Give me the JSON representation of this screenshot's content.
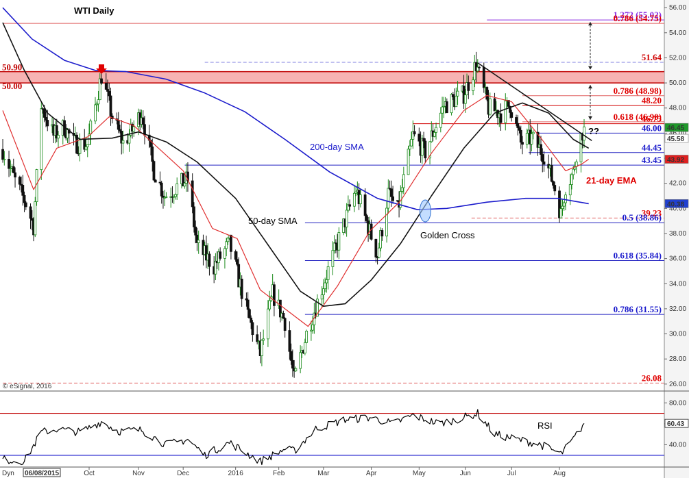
{
  "chart_data": {
    "type": "candlestick",
    "title": "WTI Daily",
    "source": "© eSignal, 2016",
    "start_date_label": "06/08/2015",
    "corner_label": "Dyn",
    "ylim": [
      25.5,
      56.5
    ],
    "y_ticks": [
      26.0,
      28.0,
      30.0,
      32.0,
      34.0,
      36.0,
      38.0,
      40.0,
      42.0,
      44.0,
      46.0,
      48.0,
      50.0,
      52.0,
      54.0,
      56.0
    ],
    "x_labels": [
      {
        "label": "Oct",
        "date": "2015-10-01"
      },
      {
        "label": "Nov",
        "date": "2015-11-02"
      },
      {
        "label": "Dec",
        "date": "2015-12-01"
      },
      {
        "label": "2016",
        "date": "2016-01-04"
      },
      {
        "label": "Feb",
        "date": "2016-02-01"
      },
      {
        "label": "Mar",
        "date": "2016-03-01"
      },
      {
        "label": "Apr",
        "date": "2016-04-01"
      },
      {
        "label": "May",
        "date": "2016-05-02"
      },
      {
        "label": "Jun",
        "date": "2016-06-01"
      },
      {
        "label": "Jul",
        "date": "2016-07-01"
      },
      {
        "label": "Aug",
        "date": "2016-08-01"
      }
    ],
    "price_key_dates": [
      {
        "date": "2015-08-06",
        "close": 44.7
      },
      {
        "date": "2015-08-14",
        "close": 42.2
      },
      {
        "date": "2015-08-21",
        "close": 40.4
      },
      {
        "date": "2015-08-26",
        "close": 38.6
      },
      {
        "date": "2015-08-31",
        "close": 48.2
      },
      {
        "date": "2015-09-08",
        "close": 45.8
      },
      {
        "date": "2015-09-15",
        "close": 46.5
      },
      {
        "date": "2015-09-21",
        "close": 45.2
      },
      {
        "date": "2015-09-30",
        "close": 45.1
      },
      {
        "date": "2015-10-09",
        "close": 50.6
      },
      {
        "date": "2015-10-16",
        "close": 47.3
      },
      {
        "date": "2015-10-23",
        "close": 45.2
      },
      {
        "date": "2015-10-28",
        "close": 46.0
      },
      {
        "date": "2015-11-04",
        "close": 47.7
      },
      {
        "date": "2015-11-12",
        "close": 43.0
      },
      {
        "date": "2015-11-19",
        "close": 41.0
      },
      {
        "date": "2015-11-30",
        "close": 42.0
      },
      {
        "date": "2015-12-04",
        "close": 42.3
      },
      {
        "date": "2015-12-10",
        "close": 37.0
      },
      {
        "date": "2015-12-21",
        "close": 35.4
      },
      {
        "date": "2015-12-31",
        "close": 37.2
      },
      {
        "date": "2016-01-12",
        "close": 31.5
      },
      {
        "date": "2016-01-20",
        "close": 28.4
      },
      {
        "date": "2016-01-28",
        "close": 33.2
      },
      {
        "date": "2016-02-05",
        "close": 31.0
      },
      {
        "date": "2016-02-11",
        "close": 26.3
      },
      {
        "date": "2016-02-19",
        "close": 30.0
      },
      {
        "date": "2016-03-01",
        "close": 34.0
      },
      {
        "date": "2016-03-08",
        "close": 36.5
      },
      {
        "date": "2016-03-22",
        "close": 41.5
      },
      {
        "date": "2016-04-05",
        "close": 36.3
      },
      {
        "date": "2016-04-12",
        "close": 41.2
      },
      {
        "date": "2016-04-18",
        "close": 39.8
      },
      {
        "date": "2016-04-28",
        "close": 45.8
      },
      {
        "date": "2016-05-06",
        "close": 44.5
      },
      {
        "date": "2016-05-18",
        "close": 48.2
      },
      {
        "date": "2016-05-31",
        "close": 49.1
      },
      {
        "date": "2016-06-08",
        "close": 51.5
      },
      {
        "date": "2016-06-16",
        "close": 48.0
      },
      {
        "date": "2016-06-24",
        "close": 47.6
      },
      {
        "date": "2016-06-30",
        "close": 48.3
      },
      {
        "date": "2016-07-07",
        "close": 45.2
      },
      {
        "date": "2016-07-14",
        "close": 45.6
      },
      {
        "date": "2016-07-22",
        "close": 44.3
      },
      {
        "date": "2016-07-29",
        "close": 41.6
      },
      {
        "date": "2016-08-02",
        "close": 39.5
      },
      {
        "date": "2016-08-05",
        "close": 41.8
      },
      {
        "date": "2016-08-10",
        "close": 42.8
      },
      {
        "date": "2016-08-12",
        "close": 44.5
      },
      {
        "date": "2016-08-15",
        "close": 45.7
      },
      {
        "date": "2016-08-17",
        "close": 46.5
      }
    ],
    "sma50": [
      {
        "date": "2015-08-06",
        "value": 54.8
      },
      {
        "date": "2015-08-20",
        "value": 51.0
      },
      {
        "date": "2015-09-04",
        "value": 47.6
      },
      {
        "date": "2015-09-25",
        "value": 45.5
      },
      {
        "date": "2015-10-16",
        "value": 45.6
      },
      {
        "date": "2015-11-02",
        "value": 46.1
      },
      {
        "date": "2015-11-20",
        "value": 45.3
      },
      {
        "date": "2015-12-10",
        "value": 43.7
      },
      {
        "date": "2016-01-04",
        "value": 40.8
      },
      {
        "date": "2016-01-25",
        "value": 37.1
      },
      {
        "date": "2016-02-15",
        "value": 33.4
      },
      {
        "date": "2016-03-01",
        "value": 32.2
      },
      {
        "date": "2016-03-15",
        "value": 32.4
      },
      {
        "date": "2016-04-01",
        "value": 34.3
      },
      {
        "date": "2016-04-20",
        "value": 37.2
      },
      {
        "date": "2016-05-10",
        "value": 41.0
      },
      {
        "date": "2016-05-31",
        "value": 44.8
      },
      {
        "date": "2016-06-20",
        "value": 47.6
      },
      {
        "date": "2016-07-08",
        "value": 48.4
      },
      {
        "date": "2016-07-25",
        "value": 47.6
      },
      {
        "date": "2016-08-10",
        "value": 45.5
      },
      {
        "date": "2016-08-20",
        "value": 44.8
      }
    ],
    "sma200": [
      {
        "date": "2015-08-06",
        "value": 56.0
      },
      {
        "date": "2015-08-25",
        "value": 53.5
      },
      {
        "date": "2015-09-15",
        "value": 51.8
      },
      {
        "date": "2015-10-05",
        "value": 51.0
      },
      {
        "date": "2015-10-25",
        "value": 50.9
      },
      {
        "date": "2015-11-20",
        "value": 50.3
      },
      {
        "date": "2015-12-15",
        "value": 49.2
      },
      {
        "date": "2016-01-10",
        "value": 47.7
      },
      {
        "date": "2016-02-05",
        "value": 45.5
      },
      {
        "date": "2016-03-05",
        "value": 42.9
      },
      {
        "date": "2016-04-05",
        "value": 40.8
      },
      {
        "date": "2016-05-01",
        "value": 39.9
      },
      {
        "date": "2016-05-20",
        "value": 40.0
      },
      {
        "date": "2016-06-15",
        "value": 40.5
      },
      {
        "date": "2016-07-10",
        "value": 40.8
      },
      {
        "date": "2016-07-31",
        "value": 40.8
      },
      {
        "date": "2016-08-20",
        "value": 40.38
      }
    ],
    "ema21": [
      {
        "date": "2015-08-06",
        "value": 47.8
      },
      {
        "date": "2015-08-26",
        "value": 41.5
      },
      {
        "date": "2015-09-10",
        "value": 44.8
      },
      {
        "date": "2015-09-30",
        "value": 45.7
      },
      {
        "date": "2015-10-14",
        "value": 47.3
      },
      {
        "date": "2015-10-30",
        "value": 46.6
      },
      {
        "date": "2015-11-15",
        "value": 44.8
      },
      {
        "date": "2015-12-01",
        "value": 43.0
      },
      {
        "date": "2015-12-20",
        "value": 38.4
      },
      {
        "date": "2016-01-05",
        "value": 37.6
      },
      {
        "date": "2016-01-20",
        "value": 33.5
      },
      {
        "date": "2016-02-05",
        "value": 32.0
      },
      {
        "date": "2016-02-20",
        "value": 30.6
      },
      {
        "date": "2016-03-10",
        "value": 33.8
      },
      {
        "date": "2016-03-31",
        "value": 38.2
      },
      {
        "date": "2016-04-20",
        "value": 40.6
      },
      {
        "date": "2016-05-10",
        "value": 44.4
      },
      {
        "date": "2016-05-31",
        "value": 47.8
      },
      {
        "date": "2016-06-15",
        "value": 49.0
      },
      {
        "date": "2016-07-01",
        "value": 48.5
      },
      {
        "date": "2016-07-20",
        "value": 45.6
      },
      {
        "date": "2016-08-05",
        "value": 43.0
      },
      {
        "date": "2016-08-15",
        "value": 43.5
      },
      {
        "date": "2016-08-20",
        "value": 43.92
      }
    ],
    "resistance_zone": {
      "from": 50.0,
      "to": 50.9,
      "labels": [
        "50.90",
        "50.00"
      ]
    },
    "levels": [
      {
        "label": "1.272 (55.02)",
        "value": 55.02,
        "color": "#8a2be2",
        "style": "solid",
        "start": "2016-06-15",
        "text_color": "#8a2be2"
      },
      {
        "label": "0.786 (54.75)",
        "value": 54.75,
        "color": "#e06060",
        "style": "solid",
        "start": "2015-08-06",
        "text_color": "#e00000"
      },
      {
        "label": "51.64",
        "value": 51.64,
        "color": "#8080e0",
        "style": "dashed",
        "start": "2015-12-15",
        "text_color": "#d00000"
      },
      {
        "label": "0.786 (48.98)",
        "value": 48.98,
        "color": "#e06060",
        "style": "solid",
        "start": "2016-07-08",
        "text_color": "#e00000"
      },
      {
        "label": "48.20",
        "value": 48.2,
        "color": "#d00000",
        "style": "solid",
        "start": "2016-07-08",
        "text_color": "#e00000"
      },
      {
        "label": "0.618 (46.90)",
        "value": 46.9,
        "color": "#e06060",
        "style": "solid",
        "start": "2016-07-08",
        "text_color": "#e00000"
      },
      {
        "label": "46.75",
        "value": 46.75,
        "color": "#d00000",
        "style": "solid",
        "start": "2016-04-28",
        "text_color": "#e00000"
      },
      {
        "label": "46.00",
        "value": 46.0,
        "color": "#2020c0",
        "style": "solid",
        "start": "2016-07-17",
        "text_color": "#1a1acc"
      },
      {
        "label": "44.45",
        "value": 44.45,
        "color": "#2020c0",
        "style": "solid",
        "start": "2016-07-12",
        "text_color": "#1a1acc"
      },
      {
        "label": "43.45",
        "value": 43.45,
        "color": "#2020c0",
        "style": "solid",
        "start": "2015-12-02",
        "text_color": "#1a1acc"
      },
      {
        "label": "39.23",
        "value": 39.23,
        "color": "#e06060",
        "style": "dashed",
        "start": "2016-06-05",
        "text_color": "#e00000"
      },
      {
        "label": "0.5 (38.86)",
        "value": 38.86,
        "color": "#2020c0",
        "style": "solid",
        "start": "2016-02-18",
        "text_color": "#1a1acc"
      },
      {
        "label": "0.618 (35.84)",
        "value": 35.84,
        "color": "#2020c0",
        "style": "solid",
        "start": "2016-02-18",
        "text_color": "#1a1acc"
      },
      {
        "label": "0.786 (31.55)",
        "value": 31.55,
        "color": "#2020c0",
        "style": "solid",
        "start": "2016-02-18",
        "text_color": "#1a1acc"
      },
      {
        "label": "26.08",
        "value": 26.08,
        "color": "#e06060",
        "style": "dashed",
        "start": "2015-08-06",
        "text_color": "#e00000"
      }
    ],
    "trendline": [
      {
        "date": "2016-06-09",
        "value": 51.6
      },
      {
        "date": "2016-08-22",
        "value": 45.4
      }
    ],
    "annotations": {
      "sma200_label": "200-day SMA",
      "sma50_label": "50-day SMA",
      "ema21_label": "21-day EMA",
      "golden_cross": "Golden Cross",
      "question": "??",
      "golden_cross_point": {
        "date": "2016-05-06",
        "value": 39.8
      },
      "arrow_date": "2015-10-09"
    },
    "price_badges": [
      {
        "text": "46.45",
        "value": 46.45,
        "bg": "#1e9a2a",
        "fg": "#ffffff"
      },
      {
        "text": "45.58",
        "value": 45.58,
        "bg": "#ffffff",
        "fg": "#000000"
      },
      {
        "text": "43.92",
        "value": 43.92,
        "bg": "#e02020",
        "fg": "#ffffff"
      },
      {
        "text": "40.38",
        "value": 40.38,
        "bg": "#2040d0",
        "fg": "#ffffff"
      }
    ],
    "rsi": {
      "label": "RSI",
      "ylim": [
        20,
        90
      ],
      "y_ticks": [
        40.0,
        60.0,
        80.0
      ],
      "upper": 70,
      "lower": 30,
      "last_badge": "60.43",
      "key_values": [
        {
          "date": "2015-08-06",
          "value": 26
        },
        {
          "date": "2015-08-20",
          "value": 24
        },
        {
          "date": "2015-08-31",
          "value": 52
        },
        {
          "date": "2015-09-10",
          "value": 55
        },
        {
          "date": "2015-09-25",
          "value": 52
        },
        {
          "date": "2015-10-09",
          "value": 62
        },
        {
          "date": "2015-10-20",
          "value": 53
        },
        {
          "date": "2015-11-04",
          "value": 54
        },
        {
          "date": "2015-11-20",
          "value": 40
        },
        {
          "date": "2015-12-04",
          "value": 45
        },
        {
          "date": "2015-12-15",
          "value": 30
        },
        {
          "date": "2015-12-31",
          "value": 42
        },
        {
          "date": "2016-01-20",
          "value": 24
        },
        {
          "date": "2016-02-05",
          "value": 36
        },
        {
          "date": "2016-02-11",
          "value": 34
        },
        {
          "date": "2016-02-25",
          "value": 55
        },
        {
          "date": "2016-03-15",
          "value": 64
        },
        {
          "date": "2016-04-01",
          "value": 66
        },
        {
          "date": "2016-04-15",
          "value": 60
        },
        {
          "date": "2016-04-28",
          "value": 68
        },
        {
          "date": "2016-05-15",
          "value": 60
        },
        {
          "date": "2016-05-31",
          "value": 66
        },
        {
          "date": "2016-06-09",
          "value": 70
        },
        {
          "date": "2016-06-20",
          "value": 50
        },
        {
          "date": "2016-07-05",
          "value": 45
        },
        {
          "date": "2016-07-20",
          "value": 40
        },
        {
          "date": "2016-08-02",
          "value": 31
        },
        {
          "date": "2016-08-10",
          "value": 45
        },
        {
          "date": "2016-08-17",
          "value": 60.43
        }
      ]
    }
  }
}
